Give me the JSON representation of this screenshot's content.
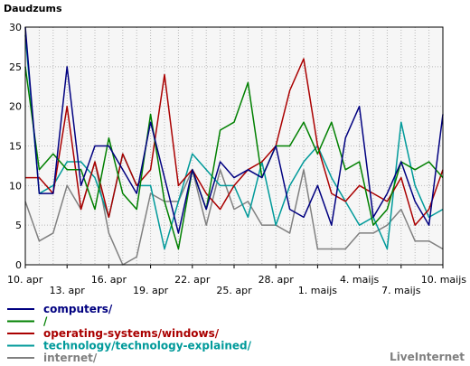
{
  "chart_data": {
    "type": "line",
    "ylabel": "Daudzums",
    "ylim": [
      0,
      30
    ],
    "yticks": [
      0,
      5,
      10,
      15,
      20,
      25,
      30
    ],
    "grid": true,
    "legend_position": "bottom-left",
    "x_count": 31,
    "x_tick_labels": [
      {
        "index": 0,
        "label": "10. apr"
      },
      {
        "index": 3,
        "label": "13. apr"
      },
      {
        "index": 6,
        "label": "16. apr"
      },
      {
        "index": 9,
        "label": "19. apr"
      },
      {
        "index": 12,
        "label": "22. apr"
      },
      {
        "index": 15,
        "label": "25. apr"
      },
      {
        "index": 18,
        "label": "28. apr"
      },
      {
        "index": 21,
        "label": "1. maijs"
      },
      {
        "index": 24,
        "label": "4. maijs"
      },
      {
        "index": 27,
        "label": "7. maijs"
      },
      {
        "index": 30,
        "label": "10. maijs"
      }
    ],
    "series": [
      {
        "name": "computers/",
        "color": "#000080",
        "values": [
          30,
          9,
          9,
          25,
          10,
          15,
          15,
          12,
          9,
          18,
          11,
          4,
          12,
          7,
          13,
          11,
          12,
          11,
          15,
          7,
          6,
          10,
          5,
          16,
          20,
          6,
          9,
          13,
          8,
          5,
          19
        ]
      },
      {
        "name": "/",
        "color": "#008000",
        "values": [
          25,
          12,
          14,
          12,
          12,
          7,
          16,
          9,
          7,
          19,
          8,
          2,
          12,
          7,
          17,
          18,
          23,
          11,
          15,
          15,
          18,
          14,
          18,
          12,
          13,
          5,
          7,
          13,
          12,
          13,
          11
        ]
      },
      {
        "name": "operating-systems/windows/",
        "color": "#aa0000",
        "values": [
          11,
          11,
          9,
          20,
          7,
          13,
          6,
          14,
          10,
          12,
          24,
          10,
          12,
          9,
          7,
          10,
          12,
          13,
          15,
          22,
          26,
          15,
          9,
          8,
          10,
          9,
          8,
          11,
          5,
          7,
          12
        ]
      },
      {
        "name": "technology/technology-explained/",
        "color": "#009a9a",
        "values": [
          29,
          9,
          10,
          13,
          13,
          11,
          6,
          14,
          10,
          10,
          2,
          8,
          14,
          12,
          10,
          10,
          6,
          13,
          5,
          10,
          13,
          15,
          11,
          8,
          5,
          6,
          2,
          18,
          10,
          6,
          7
        ]
      },
      {
        "name": "internet/",
        "color": "#808080",
        "values": [
          8,
          3,
          4,
          10,
          7,
          13,
          4,
          0,
          1,
          9,
          8,
          8,
          12,
          5,
          12,
          7,
          8,
          5,
          5,
          4,
          12,
          2,
          2,
          2,
          4,
          4,
          5,
          7,
          3,
          3,
          2
        ]
      }
    ]
  },
  "brand": "LiveInternet"
}
